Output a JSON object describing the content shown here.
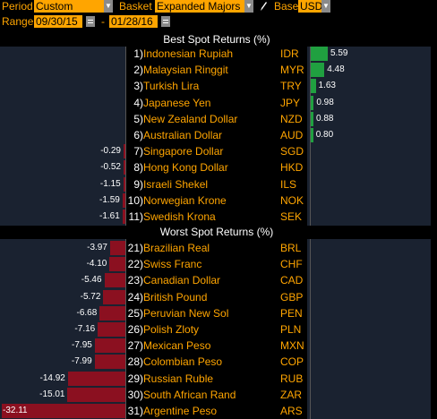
{
  "controls": {
    "period_label": "Period",
    "period_value": "Custom",
    "basket_label": "Basket",
    "basket_value": "Expanded Majors",
    "base_label": "Base",
    "base_value": "USD",
    "range_label": "Range",
    "range_start": "09/30/15",
    "range_sep": "-",
    "range_end": "01/28/16"
  },
  "best": {
    "title": "Best Spot Returns (%)",
    "rows": [
      {
        "rank": "1",
        "name": "Indonesian Rupiah",
        "code": "IDR",
        "value": 5.59,
        "label": "5.59"
      },
      {
        "rank": "2",
        "name": "Malaysian Ringgit",
        "code": "MYR",
        "value": 4.48,
        "label": "4.48"
      },
      {
        "rank": "3",
        "name": "Turkish Lira",
        "code": "TRY",
        "value": 1.63,
        "label": "1.63"
      },
      {
        "rank": "4",
        "name": "Japanese Yen",
        "code": "JPY",
        "value": 0.98,
        "label": "0.98"
      },
      {
        "rank": "5",
        "name": "New Zealand Dollar",
        "code": "NZD",
        "value": 0.88,
        "label": "0.88"
      },
      {
        "rank": "6",
        "name": "Australian Dollar",
        "code": "AUD",
        "value": 0.8,
        "label": "0.80"
      },
      {
        "rank": "7",
        "name": "Singapore Dollar",
        "code": "SGD",
        "value": -0.29,
        "label": "-0.29"
      },
      {
        "rank": "8",
        "name": "Hong Kong Dollar",
        "code": "HKD",
        "value": -0.52,
        "label": "-0.52"
      },
      {
        "rank": "9",
        "name": "Israeli Shekel",
        "code": "ILS",
        "value": -1.15,
        "label": "-1.15"
      },
      {
        "rank": "10",
        "name": "Norwegian Krone",
        "code": "NOK",
        "value": -1.59,
        "label": "-1.59"
      },
      {
        "rank": "11",
        "name": "Swedish Krona",
        "code": "SEK",
        "value": -1.61,
        "label": "-1.61"
      }
    ]
  },
  "worst": {
    "title": "Worst Spot Returns (%)",
    "rows": [
      {
        "rank": "21",
        "name": "Brazilian Real",
        "code": "BRL",
        "value": -3.97,
        "label": "-3.97"
      },
      {
        "rank": "22",
        "name": "Swiss Franc",
        "code": "CHF",
        "value": -4.1,
        "label": "-4.10"
      },
      {
        "rank": "23",
        "name": "Canadian Dollar",
        "code": "CAD",
        "value": -5.46,
        "label": "-5.46"
      },
      {
        "rank": "24",
        "name": "British Pound",
        "code": "GBP",
        "value": -5.72,
        "label": "-5.72"
      },
      {
        "rank": "25",
        "name": "Peruvian New Sol",
        "code": "PEN",
        "value": -6.68,
        "label": "-6.68"
      },
      {
        "rank": "26",
        "name": "Polish Zloty",
        "code": "PLN",
        "value": -7.16,
        "label": "-7.16"
      },
      {
        "rank": "27",
        "name": "Mexican Peso",
        "code": "MXN",
        "value": -7.95,
        "label": "-7.95"
      },
      {
        "rank": "28",
        "name": "Colombian Peso",
        "code": "COP",
        "value": -7.99,
        "label": "-7.99"
      },
      {
        "rank": "29",
        "name": "Russian Ruble",
        "code": "RUB",
        "value": -14.92,
        "label": "-14.92"
      },
      {
        "rank": "30",
        "name": "South African Rand",
        "code": "ZAR",
        "value": -15.01,
        "label": "-15.01"
      },
      {
        "rank": "31",
        "name": "Argentine Peso",
        "code": "ARS",
        "value": -32.11,
        "label": "-32.11"
      }
    ]
  },
  "colors": {
    "accent": "#ffa500",
    "positive_bar": "#20a040",
    "negative_bar": "#8b1020",
    "panel_bg": "#1a2230"
  }
}
